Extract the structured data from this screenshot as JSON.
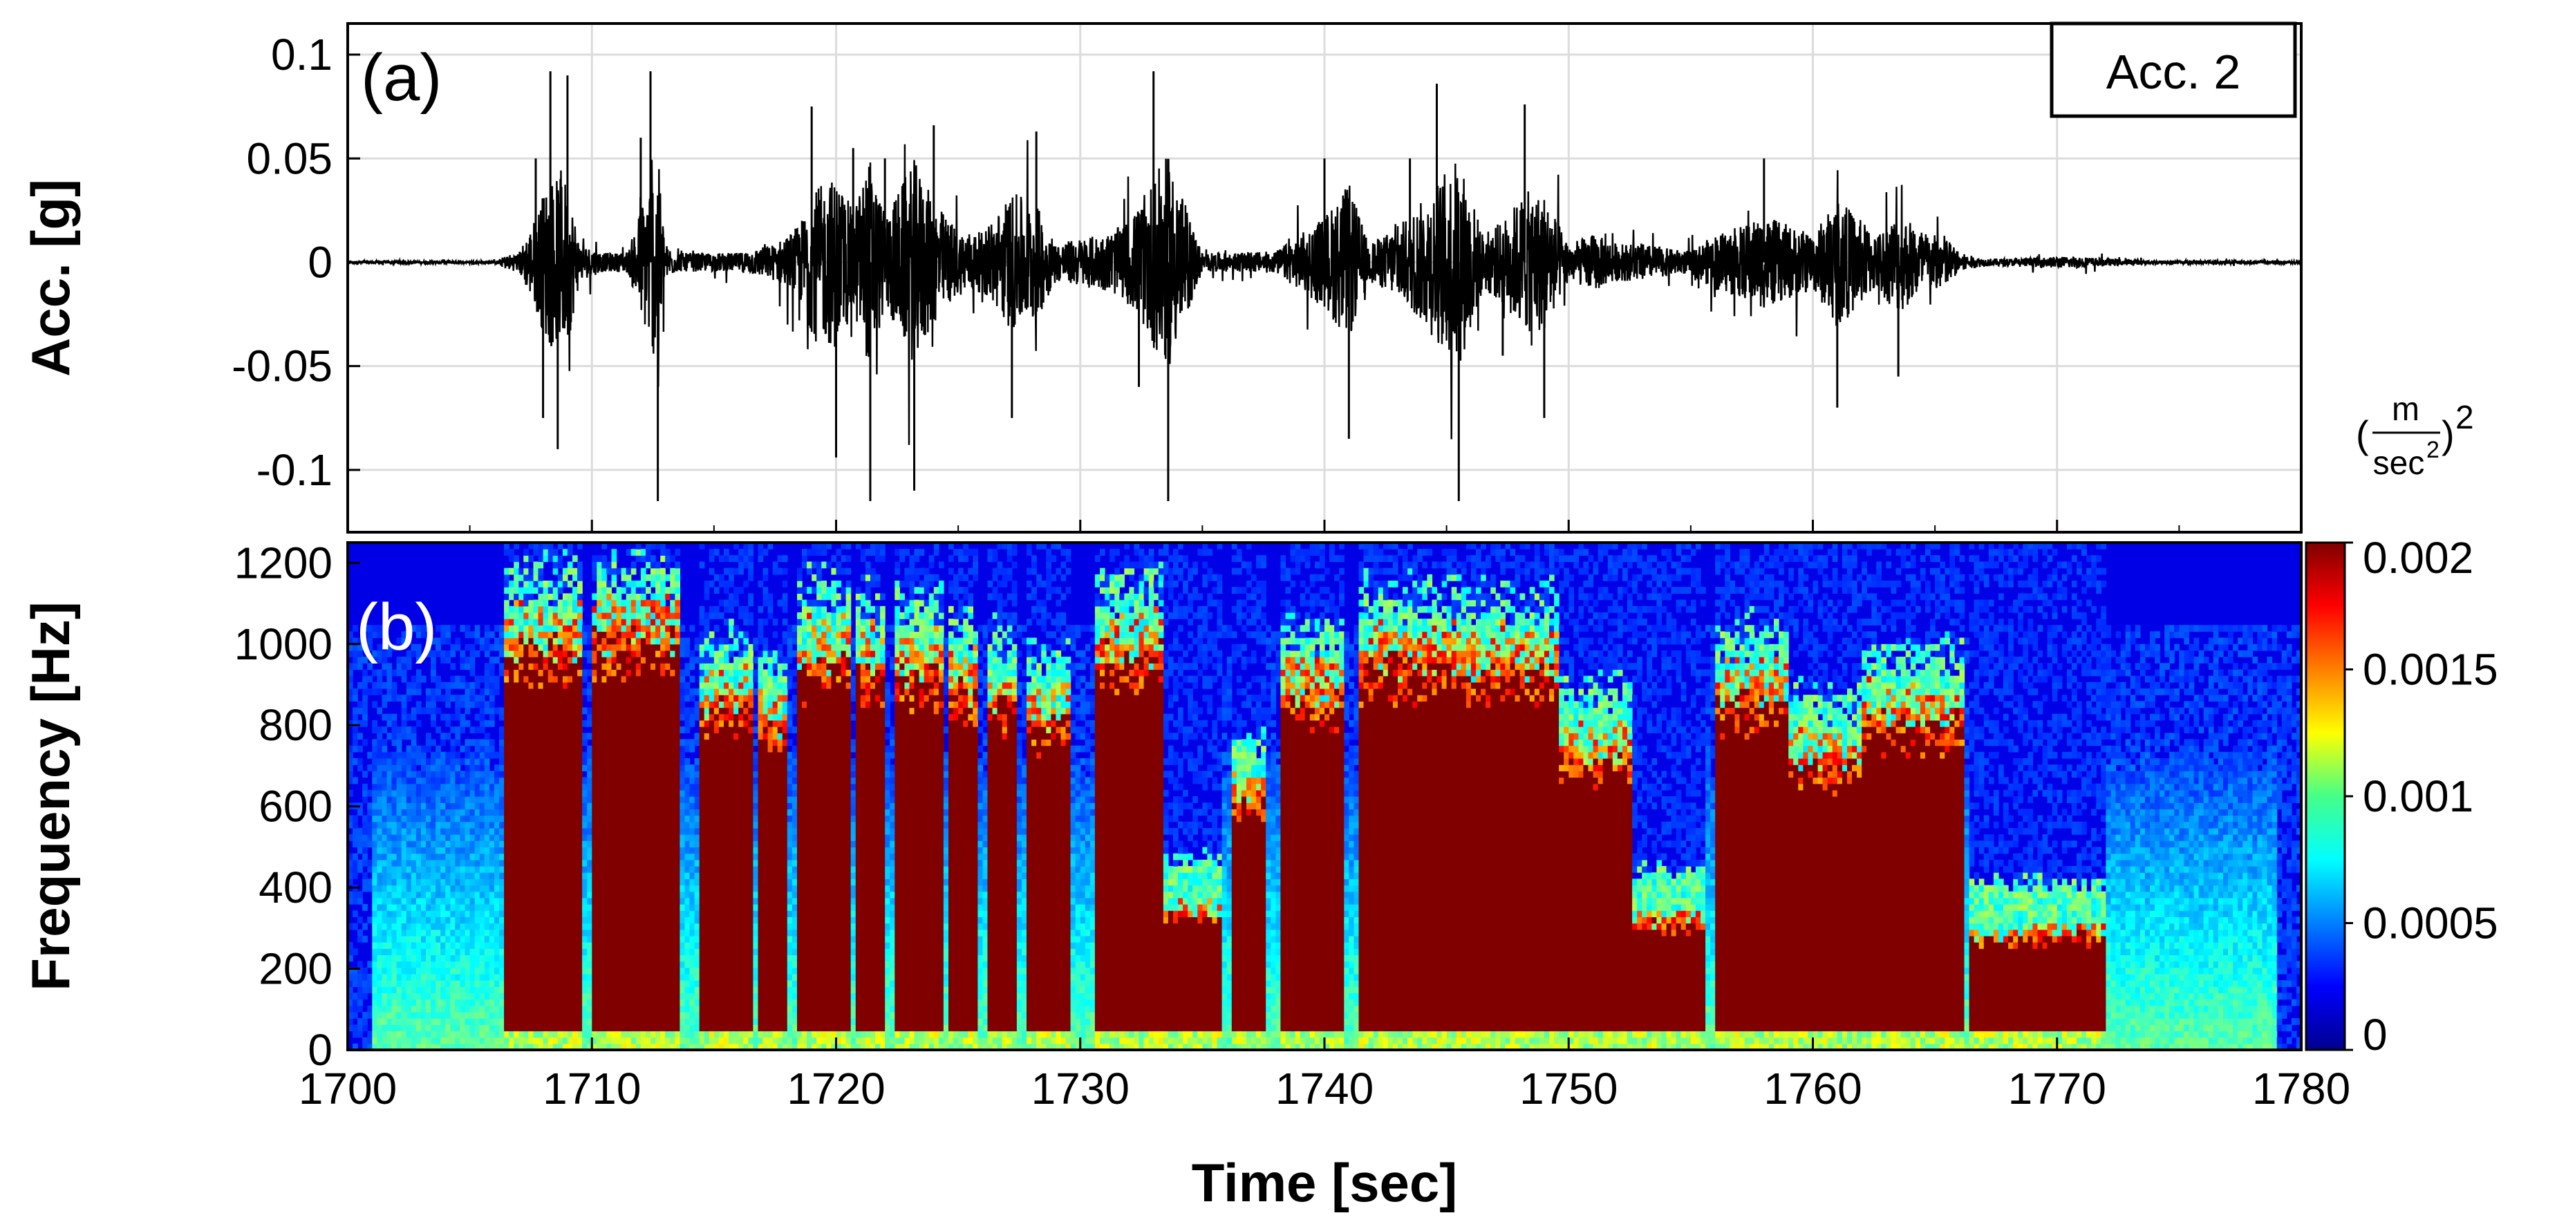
{
  "chart_data": [
    {
      "type": "line",
      "panel_label": "(a)",
      "legend_label": "Acc. 2",
      "ylabel": "Acc. [g]",
      "xlim": [
        1700,
        1780
      ],
      "ylim": [
        -0.13,
        0.115
      ],
      "yticks": [
        0.1,
        0.05,
        0,
        -0.05,
        -0.1
      ],
      "ytick_labels": [
        "0.1",
        "0.05",
        "0",
        "-0.05",
        "-0.1"
      ],
      "xticks": [
        1700,
        1710,
        1720,
        1730,
        1740,
        1750,
        1760,
        1770,
        1780
      ],
      "grid": true,
      "series": [
        {
          "color": "#000000",
          "x": [
            1700,
            1706,
            1706.5,
            1707,
            1707.7,
            1708,
            1708.3,
            1708.6,
            1709,
            1709.5,
            1710,
            1710.5,
            1711,
            1711.5,
            1712,
            1712.4,
            1712.7,
            1713,
            1713.5,
            1714.5,
            1716,
            1717.5,
            1718.5,
            1719,
            1720,
            1720.7,
            1721.4,
            1722,
            1723.2,
            1724,
            1725,
            1726,
            1727.2,
            1728.2,
            1729,
            1730,
            1731,
            1731.8,
            1732.4,
            1733,
            1733.6,
            1735,
            1736.5,
            1738,
            1739,
            1740,
            1741,
            1741.8,
            1742.5,
            1743.5,
            1744.6,
            1745.5,
            1746.5,
            1747.3,
            1748.2,
            1749,
            1750,
            1751,
            1752,
            1753,
            1754,
            1755,
            1756,
            1757.2,
            1758,
            1759,
            1760,
            1761,
            1762.6,
            1763.5,
            1764.8,
            1765.4,
            1766,
            1767,
            1768,
            1770,
            1771,
            1772,
            1774,
            1776,
            1778,
            1780
          ],
          "y": [
            0,
            0,
            0.008,
            -0.01,
            0.05,
            -0.075,
            0.092,
            -0.09,
            0.09,
            -0.02,
            0.015,
            -0.01,
            0.01,
            -0.012,
            0.06,
            0.092,
            -0.115,
            0.02,
            -0.01,
            0.01,
            -0.01,
            0.02,
            -0.04,
            0.075,
            -0.094,
            0.055,
            -0.115,
            0.05,
            -0.11,
            0.066,
            -0.035,
            0.032,
            -0.075,
            0.063,
            -0.02,
            0.026,
            -0.03,
            0.04,
            -0.06,
            0.092,
            -0.115,
            0.01,
            -0.01,
            0.012,
            -0.03,
            0.05,
            -0.085,
            0.02,
            -0.03,
            0.05,
            0.086,
            -0.115,
            0.03,
            -0.045,
            0.076,
            -0.075,
            0.02,
            -0.03,
            0.02,
            -0.02,
            0.015,
            -0.012,
            0.03,
            -0.04,
            0.05,
            -0.04,
            0.03,
            -0.07,
            0.03,
            -0.055,
            0.03,
            0.03,
            -0.01,
            0.004,
            -0.004,
            0.006,
            -0.006,
            0.004,
            -0.002,
            0.002,
            -0.002,
            0
          ]
        }
      ]
    },
    {
      "type": "heatmap",
      "panel_label": "(b)",
      "xlabel": "Time [sec]",
      "ylabel": "Frequency [Hz]",
      "xlim": [
        1700,
        1780
      ],
      "ylim": [
        0,
        1250
      ],
      "yticks": [
        0,
        200,
        400,
        600,
        800,
        1000,
        1200
      ],
      "ytick_labels": [
        "0",
        "200",
        "400",
        "600",
        "800",
        "1000",
        "1200"
      ],
      "xticks": [
        1700,
        1710,
        1720,
        1730,
        1740,
        1750,
        1760,
        1770,
        1780
      ],
      "xtick_labels": [
        "1700",
        "1710",
        "1720",
        "1730",
        "1740",
        "1750",
        "1760",
        "1770",
        "1780"
      ],
      "colorbar": {
        "unit_numerator": "m",
        "unit_denominator": "sec",
        "unit_exponent": "2",
        "unit_den_exponent": "2",
        "min": 0,
        "max": 0.002,
        "ticks": [
          0,
          0.0005,
          0.001,
          0.0015,
          0.002
        ],
        "tick_labels": [
          "0",
          "0.0005",
          "0.001",
          "0.0015",
          "0.002"
        ],
        "colormap": "jet"
      },
      "bursts": [
        {
          "t0": 1706.5,
          "t1": 1709.5,
          "fmax": 1120
        },
        {
          "t0": 1710,
          "t1": 1713.5,
          "fmax": 1140
        },
        {
          "t0": 1714.5,
          "t1": 1716.5,
          "fmax": 950
        },
        {
          "t0": 1716.8,
          "t1": 1718,
          "fmax": 900
        },
        {
          "t0": 1718.5,
          "t1": 1720.5,
          "fmax": 1080
        },
        {
          "t0": 1720.8,
          "t1": 1722,
          "fmax": 1060
        },
        {
          "t0": 1722.5,
          "t1": 1724.3,
          "fmax": 1050
        },
        {
          "t0": 1724.7,
          "t1": 1725.8,
          "fmax": 1000
        },
        {
          "t0": 1726.2,
          "t1": 1727.4,
          "fmax": 960
        },
        {
          "t0": 1727.8,
          "t1": 1729.5,
          "fmax": 920
        },
        {
          "t0": 1730.6,
          "t1": 1733.3,
          "fmax": 1100
        },
        {
          "t0": 1733.3,
          "t1": 1735.8,
          "fmax": 380
        },
        {
          "t0": 1736.3,
          "t1": 1737.5,
          "fmax": 700
        },
        {
          "t0": 1738.2,
          "t1": 1740.8,
          "fmax": 980
        },
        {
          "t0": 1741.5,
          "t1": 1746,
          "fmax": 1070
        },
        {
          "t0": 1746,
          "t1": 1749.5,
          "fmax": 1060
        },
        {
          "t0": 1749.5,
          "t1": 1752.5,
          "fmax": 820
        },
        {
          "t0": 1752.5,
          "t1": 1755.5,
          "fmax": 350
        },
        {
          "t0": 1756,
          "t1": 1759,
          "fmax": 980
        },
        {
          "t0": 1759,
          "t1": 1762,
          "fmax": 800
        },
        {
          "t0": 1762,
          "t1": 1766.2,
          "fmax": 920
        },
        {
          "t0": 1766.5,
          "t1": 1772,
          "fmax": 320
        }
      ]
    }
  ]
}
